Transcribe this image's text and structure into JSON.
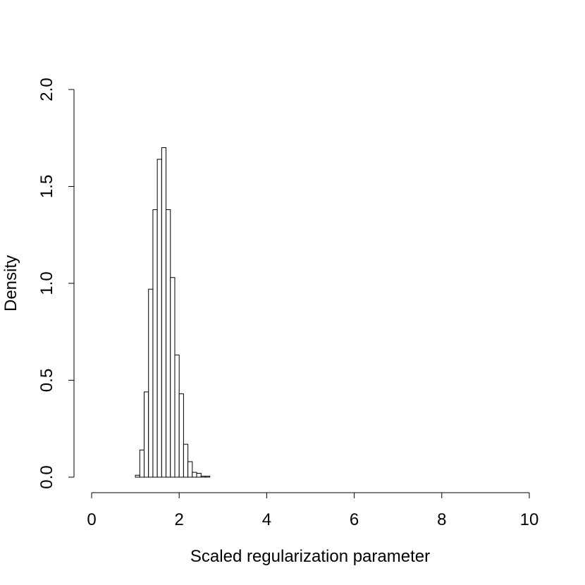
{
  "chart_data": {
    "type": "histogram",
    "xlabel": "Scaled regularization parameter",
    "ylabel": "Density",
    "bins": [
      0,
      0.1,
      0.2,
      0.3,
      0.4,
      0.5,
      0.6,
      0.7,
      0.8,
      0.9,
      1,
      1.1,
      1.2,
      1.3,
      1.4,
      1.5,
      1.6,
      1.7,
      1.8,
      1.9,
      2,
      2.1,
      2.2,
      2.3,
      2.4,
      2.5,
      2.6,
      2.7,
      2.8,
      2.9,
      3,
      3.1,
      3.2,
      3.3,
      3.4,
      3.5,
      3.6,
      3.7,
      3.8,
      3.9,
      4,
      4.1,
      4.2,
      4.3,
      4.4,
      4.5,
      4.6,
      4.7,
      4.8,
      4.9,
      5,
      5.1,
      5.2,
      5.3,
      5.4,
      5.5,
      5.6,
      5.7,
      5.8,
      5.9,
      6,
      6.1,
      6.2,
      6.3,
      6.4,
      6.5,
      6.6,
      6.7,
      6.8,
      6.9,
      7,
      7.1,
      7.2,
      7.3,
      7.4,
      7.5,
      7.6,
      7.7,
      7.8,
      7.9,
      8,
      8.1,
      8.2,
      8.3,
      8.4,
      8.5,
      8.6,
      8.7,
      8.8,
      8.9,
      9,
      9.1,
      9.2,
      9.3,
      9.4,
      9.5,
      9.6,
      9.7,
      9.8,
      9.9,
      10
    ],
    "values": [
      0,
      0,
      0,
      0,
      0,
      0,
      0,
      0,
      0,
      0,
      0.01,
      0.14,
      0.44,
      0.97,
      1.38,
      1.64,
      1.7,
      1.38,
      1.03,
      0.63,
      0.43,
      0.17,
      0.08,
      0.025,
      0.02,
      0.005,
      0.005,
      0,
      0,
      0,
      0,
      0,
      0,
      0,
      0,
      0,
      0,
      0,
      0,
      0,
      0,
      0,
      0,
      0,
      0,
      0,
      0,
      0,
      0,
      0,
      0,
      0,
      0,
      0,
      0,
      0,
      0,
      0,
      0,
      0,
      0,
      0,
      0,
      0,
      0,
      0,
      0,
      0,
      0,
      0,
      0,
      0,
      0,
      0,
      0,
      0,
      0,
      0,
      0,
      0,
      0,
      0,
      0,
      0,
      0,
      0,
      0,
      0,
      0,
      0,
      0,
      0,
      0,
      0,
      0,
      0,
      0,
      0,
      0,
      0
    ],
    "color": "#ffffff",
    "xlim": [
      0,
      10
    ],
    "xticks": [
      0,
      2,
      4,
      6,
      8,
      10
    ],
    "ylim": [
      0,
      2
    ],
    "yticks": [
      {
        "value": 0,
        "label": "0.0"
      },
      {
        "value": 0.5,
        "label": "0.5"
      },
      {
        "value": 1,
        "label": "1.0"
      },
      {
        "value": 1.5,
        "label": "1.5"
      },
      {
        "value": 2,
        "label": "2.0"
      }
    ]
  }
}
